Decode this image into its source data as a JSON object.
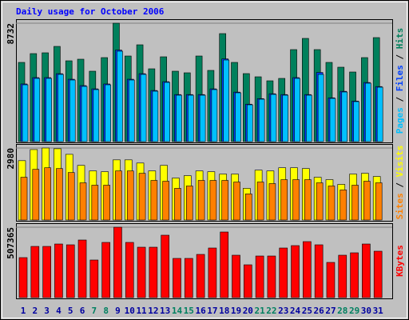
{
  "chart_data": {
    "type": "bar",
    "title": "Daily usage for October 2006",
    "categories": [
      "1",
      "2",
      "3",
      "4",
      "5",
      "6",
      "7",
      "8",
      "9",
      "10",
      "11",
      "12",
      "13",
      "14",
      "15",
      "16",
      "17",
      "18",
      "19",
      "20",
      "21",
      "22",
      "23",
      "24",
      "25",
      "26",
      "27",
      "28",
      "29",
      "30",
      "31"
    ],
    "weekend_indices": [
      6,
      7,
      13,
      14,
      20,
      21,
      27,
      28
    ],
    "weekend_color": "#008060",
    "category_color": "#0000a0",
    "legend_separator": " / ",
    "panels": [
      {
        "ylim": [
          0,
          8732
        ],
        "yticks": [
          8732
        ],
        "series": [
          {
            "name": "Hits",
            "color": "#00805c",
            "values": [
              5841,
              6490,
              6549,
              7021,
              5959,
              6077,
              5192,
              6195,
              8732,
              6313,
              7139,
              5369,
              6254,
              5192,
              5074,
              6313,
              5251,
              7965,
              5841,
              5015,
              4779,
              4484,
              4661,
              6785,
              7611,
              6785,
              5841,
              5487,
              5133,
              6195,
              7670
            ]
          },
          {
            "name": "Files",
            "color": "#0040ff",
            "values": [
              4250,
              4720,
              4720,
              5010,
              4600,
              4130,
              3890,
              4250,
              6750,
              4600,
              5010,
              3770,
              4420,
              3470,
              3470,
              3470,
              3890,
              6100,
              3650,
              2760,
              3170,
              3530,
              3470,
              4720,
              3470,
              5100,
              3230,
              3710,
              2990,
              4360,
              4060
            ]
          },
          {
            "name": "Pages",
            "color": "#00c0ff",
            "values": [
              4189,
              4661,
              4661,
              4956,
              4543,
              4071,
              3835,
              4189,
              6667,
              4543,
              4956,
              3717,
              4366,
              3422,
              3422,
              3422,
              3835,
              6018,
              3599,
              2714,
              3127,
              3481,
              3422,
              4661,
              3422,
              4956,
              3186,
              3658,
              2950,
              4307,
              4012
            ]
          }
        ]
      },
      {
        "ylim": [
          0,
          2980
        ],
        "yticks": [
          2980
        ],
        "series": [
          {
            "name": "Visits",
            "color": "#ffff00",
            "values": [
              2456,
              2915,
              2980,
              2950,
              2718,
              2260,
              2031,
              1998,
              2489,
              2489,
              2358,
              2031,
              2260,
              1736,
              1834,
              2031,
              1998,
              1900,
              1900,
              1310,
              2063,
              2031,
              2162,
              2162,
              2129,
              1769,
              1670,
              1474,
              1900,
              1932,
              1801
            ]
          },
          {
            "name": "Sites",
            "color": "#ff8000",
            "values": [
              1769,
              2096,
              2162,
              2129,
              1965,
              1539,
              1441,
              1441,
              2031,
              2031,
              1932,
              1638,
              1605,
              1310,
              1408,
              1638,
              1638,
              1638,
              1572,
              1081,
              1572,
              1507,
              1670,
              1670,
              1670,
              1539,
              1408,
              1245,
              1441,
              1605,
              1539
            ]
          }
        ]
      },
      {
        "ylim": [
          0,
          507365
        ],
        "yticks": [
          507365
        ],
        "series": [
          {
            "name": "KBytes",
            "color": "#ff0000",
            "values": [
              288275,
              368992,
              368992,
              386288,
              380523,
              415116,
              270978,
              397818,
              507365,
              397818,
              363227,
              363227,
              449707,
              282509,
              282509,
              311337,
              357461,
              472769,
              305572,
              236386,
              299806,
              299806,
              357461,
              374758,
              403584,
              380523,
              253682,
              305572,
              322868,
              386288,
              334399
            ]
          }
        ]
      }
    ]
  }
}
